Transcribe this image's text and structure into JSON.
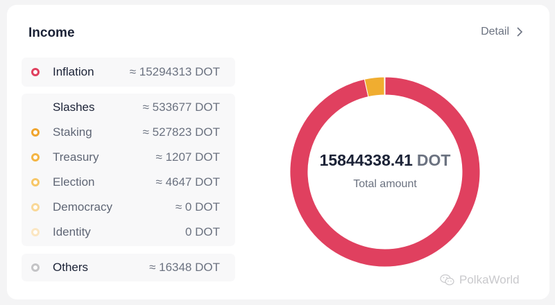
{
  "card": {
    "title": "Income",
    "detail_label": "Detail",
    "detail_icon": "chevron-right-icon"
  },
  "groups": [
    {
      "rows": [
        {
          "label": "Inflation",
          "value": "≈ 15294313 DOT",
          "dot_color": "#e0405f",
          "bold": true
        }
      ]
    },
    {
      "rows": [
        {
          "label": "Slashes",
          "value": "≈ 533677 DOT",
          "dot_color": null,
          "bold": true
        },
        {
          "label": "Staking",
          "value": "≈ 527823 DOT",
          "dot_color": "#f0a52e",
          "bold": false
        },
        {
          "label": "Treasury",
          "value": "≈ 1207 DOT",
          "dot_color": "#f4b544",
          "bold": false
        },
        {
          "label": "Election",
          "value": "≈ 4647 DOT",
          "dot_color": "#f7c768",
          "bold": false
        },
        {
          "label": "Democracy",
          "value": "≈ 0 DOT",
          "dot_color": "#f9d898",
          "bold": false
        },
        {
          "label": "Identity",
          "value": "0 DOT",
          "dot_color": "#fbe6c2",
          "bold": false
        }
      ]
    },
    {
      "rows": [
        {
          "label": "Others",
          "value": "≈ 16348 DOT",
          "dot_color": "#c4c4c6",
          "bold": true
        }
      ]
    }
  ],
  "total": {
    "amount": "15844338.41",
    "unit": "DOT",
    "label": "Total amount"
  },
  "watermark": {
    "icon": "wechat-icon",
    "text": "PolkaWorld"
  },
  "chart_data": {
    "type": "pie",
    "title": "Income",
    "subtitle": "Total amount: 15844338.41 DOT",
    "categories": [
      "Inflation",
      "Slashes",
      "Others"
    ],
    "values": [
      15294313,
      533677,
      16348
    ],
    "colors": [
      "#e0405f",
      "#f0ad30",
      "#c4c4c6"
    ],
    "breakdown": {
      "Slashes": {
        "categories": [
          "Staking",
          "Treasury",
          "Election",
          "Democracy",
          "Identity"
        ],
        "values": [
          527823,
          1207,
          4647,
          0,
          0
        ]
      }
    },
    "donut": true,
    "legend_position": "left"
  }
}
